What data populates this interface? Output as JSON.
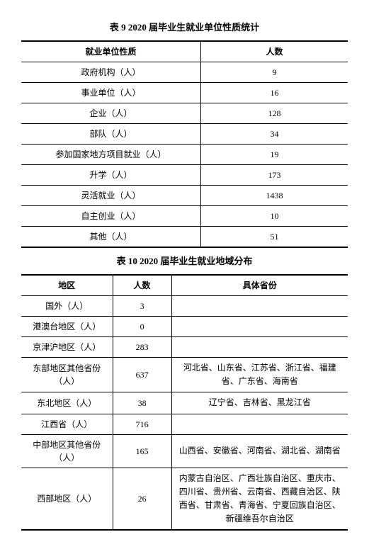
{
  "table1": {
    "title": "表 9   2020 届毕业生就业单位性质统计",
    "columns": [
      "就业单位性质",
      "人数"
    ],
    "rows": [
      {
        "label": "政府机构（人）",
        "count": "9"
      },
      {
        "label": "事业单位（人）",
        "count": "16"
      },
      {
        "label": "企业（人）",
        "count": "128"
      },
      {
        "label": "部队（人）",
        "count": "34"
      },
      {
        "label": "参加国家地方项目就业（人）",
        "count": "19"
      },
      {
        "label": "升学（人）",
        "count": "173"
      },
      {
        "label": "灵活就业（人）",
        "count": "1438"
      },
      {
        "label": "自主创业（人）",
        "count": "10"
      },
      {
        "label": "其他（人）",
        "count": "51"
      }
    ]
  },
  "table2": {
    "title": "表 10   2020 届毕业生就业地域分布",
    "columns": [
      "地区",
      "人数",
      "具体省份"
    ],
    "rows": [
      {
        "region": "国外（人）",
        "count": "3",
        "provinces": ""
      },
      {
        "region": "港澳台地区（人）",
        "count": "0",
        "provinces": ""
      },
      {
        "region": "京津沪地区（人）",
        "count": "283",
        "provinces": ""
      },
      {
        "region": "东部地区其他省份（人）",
        "count": "637",
        "provinces": "河北省、山东省、江苏省、浙江省、福建省、广东省、海南省"
      },
      {
        "region": "东北地区（人）",
        "count": "38",
        "provinces": "辽宁省、吉林省、黑龙江省"
      },
      {
        "region": "江西省（人）",
        "count": "716",
        "provinces": ""
      },
      {
        "region": "中部地区其他省份（人）",
        "count": "165",
        "provinces": "山西省、安徽省、河南省、湖北省、湖南省"
      },
      {
        "region": "西部地区（人）",
        "count": "26",
        "provinces": "内蒙古自治区、广西壮族自治区、重庆市、四川省、贵州省、云南省、西藏自治区、陕西省、甘肃省、青海省、宁夏回族自治区、新疆维吾尔自治区"
      }
    ]
  }
}
